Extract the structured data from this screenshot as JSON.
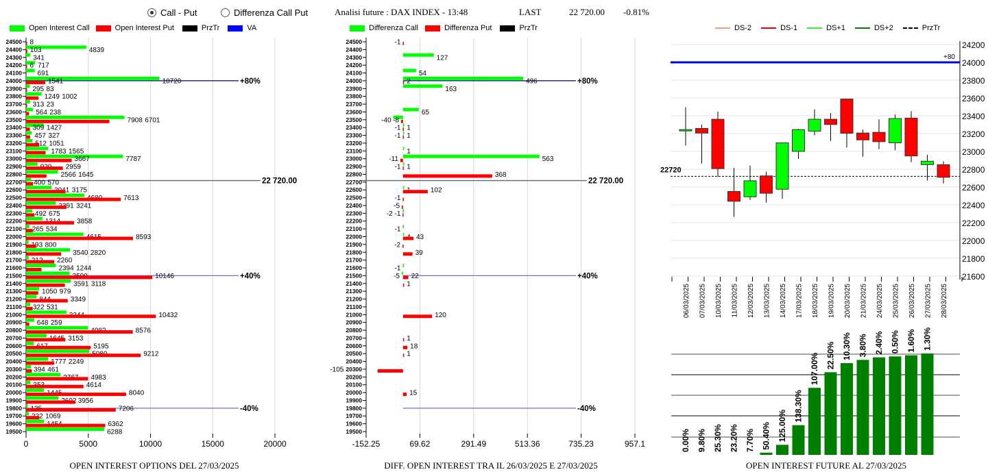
{
  "header": {
    "radio_options": [
      {
        "label": "Call - Put",
        "checked": true
      },
      {
        "label": "Differenza Call Put",
        "checked": false
      }
    ],
    "title": "Analisi future : DAX INDEX - 13:48",
    "last_label": "LAST",
    "last_price": "22 720.00",
    "change": "-0.81%"
  },
  "legend_left": [
    {
      "label": "Open Interest Call",
      "color": "#00ff00"
    },
    {
      "label": "Open Interest Put",
      "color": "#ff0000"
    },
    {
      "label": "PrzTr",
      "color": "#000000"
    },
    {
      "label": "VA",
      "color": "#0000ff"
    }
  ],
  "legend_mid": [
    {
      "label": "Differenza Call",
      "color": "#00ff00"
    },
    {
      "label": "Differenza Put",
      "color": "#ff0000"
    },
    {
      "label": "PrzTr",
      "color": "#000000"
    }
  ],
  "legend_right": [
    {
      "label": "DS-2",
      "color": "#f0a080",
      "style": "solid"
    },
    {
      "label": "DS-1",
      "color": "#e00000",
      "style": "solid"
    },
    {
      "label": "DS+1",
      "color": "#33ee33",
      "style": "solid"
    },
    {
      "label": "DS+2",
      "color": "#107010",
      "style": "solid"
    },
    {
      "label": "PrzTr",
      "color": "#000000",
      "style": "dashed"
    }
  ],
  "chart_data": [
    {
      "type": "bar",
      "orientation": "horizontal",
      "title": "OPEN INTEREST OPTIONS DEL 27/03/2025",
      "categories": [
        24500,
        24400,
        24300,
        24200,
        24100,
        24000,
        23900,
        23800,
        23700,
        23600,
        23500,
        23400,
        23300,
        23200,
        23100,
        23000,
        22900,
        22800,
        22700,
        22600,
        22500,
        22400,
        22300,
        22200,
        22100,
        22000,
        21900,
        21800,
        21700,
        21600,
        21500,
        21400,
        21300,
        21200,
        21100,
        21000,
        20900,
        20800,
        20700,
        20600,
        20500,
        20400,
        20300,
        20200,
        20100,
        20000,
        19900,
        19800,
        19700,
        19600,
        19500
      ],
      "series": [
        {
          "name": "Open Interest Call",
          "color": "#00ff00",
          "values": [
            null,
            4839,
            341,
            717,
            691,
            10720,
            295,
            1249,
            313,
            564,
            7908,
            1427,
            457,
            512,
            1783,
            7787,
            920,
            2566,
            400,
            2041,
            4680,
            2391,
            492,
            1314,
            265,
            4615,
            193,
            3540,
            212,
            2394,
            3500,
            3591,
            1050,
            844,
            322,
            3244,
            648,
            4982,
            1645,
            617,
            5080,
            1777,
            394,
            2767,
            353,
            1445,
            2602,
            135,
            222,
            1454,
            6288
          ]
        },
        {
          "name": "Open Interest Put",
          "color": "#ff0000",
          "values": [
            8,
            103,
            null,
            6,
            null,
            1541,
            83,
            1002,
            23,
            238,
            6701,
            309,
            327,
            1051,
            1565,
            3667,
            2959,
            1645,
            570,
            3175,
            7613,
            3241,
            675,
            3858,
            534,
            8593,
            800,
            2820,
            2260,
            1244,
            10146,
            3118,
            979,
            3349,
            531,
            10432,
            259,
            8576,
            3153,
            5195,
            9212,
            2249,
            461,
            4983,
            4614,
            8040,
            3956,
            7206,
            1069,
            6362,
            null
          ]
        }
      ],
      "xlim": [
        0,
        20000
      ],
      "xticks": [
        "0",
        "5000",
        "10000",
        "15000",
        "20000"
      ],
      "xtick_values": [
        0,
        5000,
        10000,
        15000,
        20000
      ],
      "reference_lines": [
        {
          "strike": 24000,
          "label": "+80%",
          "color": "#000080"
        },
        {
          "strike": 21500,
          "label": "+40%",
          "color": "#7070dd"
        },
        {
          "strike": 19800,
          "label": "-40%",
          "color": "#7070dd"
        }
      ],
      "price_line": {
        "value": 22720,
        "label": "22 720.00"
      },
      "grid": true
    },
    {
      "type": "bar",
      "orientation": "horizontal",
      "title": "DIFF. OPEN INTEREST TRA IL 26/03/2025 E 27/03/2025",
      "categories": [
        24500,
        24400,
        24300,
        24200,
        24100,
        24000,
        23900,
        23800,
        23700,
        23600,
        23500,
        23400,
        23300,
        23200,
        23100,
        23000,
        22900,
        22800,
        22700,
        22600,
        22500,
        22400,
        22300,
        22200,
        22100,
        22000,
        21900,
        21800,
        21700,
        21600,
        21500,
        21400,
        21300,
        21200,
        21100,
        21000,
        20900,
        20800,
        20700,
        20600,
        20500,
        20400,
        20300,
        20200,
        20100,
        20000,
        19900,
        19800,
        19700,
        19600,
        19500
      ],
      "series": [
        {
          "name": "Differenza Call",
          "color": "#00ff00",
          "values": [
            null,
            null,
            127,
            null,
            54,
            496,
            163,
            null,
            null,
            65,
            -40,
            1,
            1,
            null,
            1,
            563,
            1,
            null,
            null,
            1,
            null,
            null,
            -1,
            null,
            -1,
            4,
            null,
            null,
            null,
            -1,
            -5,
            null,
            null,
            null,
            null,
            null,
            null,
            null,
            null,
            null,
            null,
            null,
            null,
            null,
            null,
            null,
            null,
            null,
            null,
            null,
            null
          ]
        },
        {
          "name": "Differenza Put",
          "color": "#ff0000",
          "values": [
            -1,
            null,
            null,
            null,
            null,
            2,
            null,
            null,
            null,
            null,
            -8,
            -1,
            -1,
            null,
            null,
            -11,
            -1,
            368,
            null,
            102,
            -1,
            -5,
            -2,
            null,
            null,
            43,
            -2,
            39,
            null,
            null,
            22,
            1,
            null,
            null,
            null,
            120,
            null,
            null,
            1,
            18,
            1,
            null,
            -105,
            null,
            null,
            15,
            null,
            null,
            null,
            null,
            null
          ]
        }
      ],
      "xlim": [
        -152.25,
        957.1
      ],
      "xticks": [
        "-152.25",
        "69.62",
        "291.49",
        "513.36",
        "735.23",
        "957.1"
      ],
      "xtick_values": [
        -152.25,
        69.62,
        291.49,
        513.36,
        735.23,
        957.1
      ],
      "reference_lines": [
        {
          "strike": 24000,
          "label": "+80%",
          "color": "#000080"
        },
        {
          "strike": 21500,
          "label": "+40%",
          "color": "#7070dd"
        },
        {
          "strike": 19800,
          "label": "-40%",
          "color": "#7070dd"
        }
      ],
      "price_line": {
        "value": 22720,
        "label": "22 720.00"
      },
      "grid": true
    },
    {
      "type": "candlestick",
      "dates": [
        "06/03/2025",
        "07/03/2025",
        "10/03/2025",
        "11/03/2025",
        "12/03/2025",
        "13/03/2025",
        "14/03/2025",
        "17/03/2025",
        "18/03/2025",
        "19/03/2025",
        "20/03/2025",
        "21/03/2025",
        "24/03/2025",
        "25/03/2025",
        "26/03/2025",
        "27/03/2025",
        "28/03/2025"
      ],
      "open": [
        23232,
        23258,
        23361,
        22550,
        22490,
        22725,
        22575,
        23000,
        23227,
        23361,
        23588,
        23206,
        23214,
        23096,
        23374,
        22851,
        22851
      ],
      "high": [
        23496,
        23302,
        23447,
        22815,
        22842,
        22772,
        23096,
        23253,
        23472,
        23431,
        23588,
        23245,
        23361,
        23413,
        23452,
        22962,
        22889
      ],
      "low": [
        23065,
        22863,
        22716,
        22265,
        22455,
        22425,
        22467,
        22915,
        23181,
        23116,
        23044,
        22941,
        23026,
        23013,
        22879,
        22673,
        22640
      ],
      "close": [
        23245,
        23206,
        22807,
        22440,
        22670,
        22530,
        23096,
        23245,
        23361,
        23302,
        23204,
        23129,
        23109,
        23369,
        22949,
        22890,
        22709
      ],
      "ylim": [
        21600,
        24200
      ],
      "yticks": [
        "24200",
        "24000",
        "23800",
        "23600",
        "23400",
        "23200",
        "23000",
        "22800",
        "22600",
        "22400",
        "22200",
        "22000",
        "21800",
        "21600"
      ],
      "va_line": {
        "value": 24000,
        "label": "+80",
        "color": "#0000dd"
      },
      "price_line": {
        "value": 22720,
        "label": "22720"
      },
      "up_color": "#00ff00",
      "down_color": "#ff0000"
    },
    {
      "type": "bar",
      "title": "OPEN INTEREST FUTURE AL 27/03/2025",
      "categories": [
        "06/03/2025",
        "07/03/2025",
        "10/03/2025",
        "11/03/2025",
        "12/03/2025",
        "13/03/2025",
        "14/03/2025",
        "17/03/2025",
        "18/03/2025",
        "19/03/2025",
        "20/03/2025",
        "21/03/2025",
        "24/03/2025",
        "25/03/2025",
        "26/03/2025",
        "27/03/2025"
      ],
      "labels": [
        "0.00%",
        "9.80%",
        "25.30%",
        "23.20%",
        "7.70%",
        "50.40%",
        "125.00%",
        "138.30%",
        "107.00%",
        "22.50%",
        "10.30%",
        "3.80%",
        "2.40%",
        "0.50%",
        "1.60%",
        "1.30%"
      ],
      "relative_values": [
        0,
        0,
        0,
        0,
        0,
        2.2,
        9.9,
        29.3,
        66.1,
        81.5,
        90.5,
        93.7,
        96.2,
        97.1,
        98.2,
        100
      ],
      "color": "#008000"
    }
  ]
}
